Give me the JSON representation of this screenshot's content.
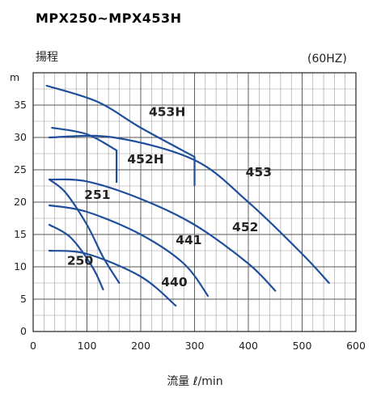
{
  "chart_data": {
    "type": "line",
    "title": "MPX250~MPX453H",
    "ylabel": "揚程",
    "y_unit": "m",
    "xlabel": "流量 ℓ/min",
    "frequency_note": "(60HZ)",
    "xlim": [
      0,
      600
    ],
    "ylim": [
      0,
      40
    ],
    "x_ticks": [
      0,
      100,
      200,
      300,
      400,
      500,
      600
    ],
    "y_ticks": [
      0,
      5,
      10,
      15,
      20,
      25,
      30,
      35
    ],
    "grid": true,
    "curve_color": "#1f4f9c",
    "series": [
      {
        "name": "453H",
        "points": [
          [
            25,
            38.0
          ],
          [
            120,
            35.5
          ],
          [
            200,
            31.5
          ],
          [
            300,
            27.0
          ]
        ],
        "drop_x": 300,
        "drop_to": 22.5,
        "label_at": [
          215,
          33.3
        ]
      },
      {
        "name": "452H",
        "points": [
          [
            35,
            31.5
          ],
          [
            100,
            30.5
          ],
          [
            155,
            28.0
          ]
        ],
        "drop_x": 155,
        "drop_to": 23.0,
        "label_at": [
          175,
          26.0
        ]
      },
      {
        "name": "453",
        "points": [
          [
            30,
            30.0
          ],
          [
            150,
            30.0
          ],
          [
            300,
            26.5
          ],
          [
            400,
            20.0
          ],
          [
            500,
            12.0
          ],
          [
            550,
            7.5
          ]
        ],
        "label_at": [
          395,
          24.0
        ]
      },
      {
        "name": "452",
        "points": [
          [
            30,
            23.5
          ],
          [
            100,
            23.2
          ],
          [
            200,
            20.5
          ],
          [
            300,
            16.5
          ],
          [
            400,
            10.5
          ],
          [
            450,
            6.3
          ]
        ],
        "label_at": [
          370,
          15.5
        ]
      },
      {
        "name": "441",
        "points": [
          [
            30,
            19.5
          ],
          [
            100,
            18.5
          ],
          [
            200,
            15.0
          ],
          [
            280,
            10.5
          ],
          [
            325,
            5.5
          ]
        ],
        "label_at": [
          265,
          13.5
        ]
      },
      {
        "name": "440",
        "points": [
          [
            30,
            12.5
          ],
          [
            100,
            12.0
          ],
          [
            200,
            8.5
          ],
          [
            265,
            4.0
          ]
        ],
        "label_at": [
          238,
          7.0
        ]
      },
      {
        "name": "251",
        "points": [
          [
            30,
            23.5
          ],
          [
            60,
            21.5
          ],
          [
            100,
            16.5
          ],
          [
            130,
            11.5
          ],
          [
            160,
            7.5
          ]
        ],
        "label_at": [
          95,
          20.5
        ]
      },
      {
        "name": "250",
        "points": [
          [
            30,
            16.5
          ],
          [
            70,
            14.5
          ],
          [
            110,
            10.0
          ],
          [
            130,
            6.5
          ]
        ],
        "label_at": [
          63,
          10.3
        ]
      }
    ]
  }
}
